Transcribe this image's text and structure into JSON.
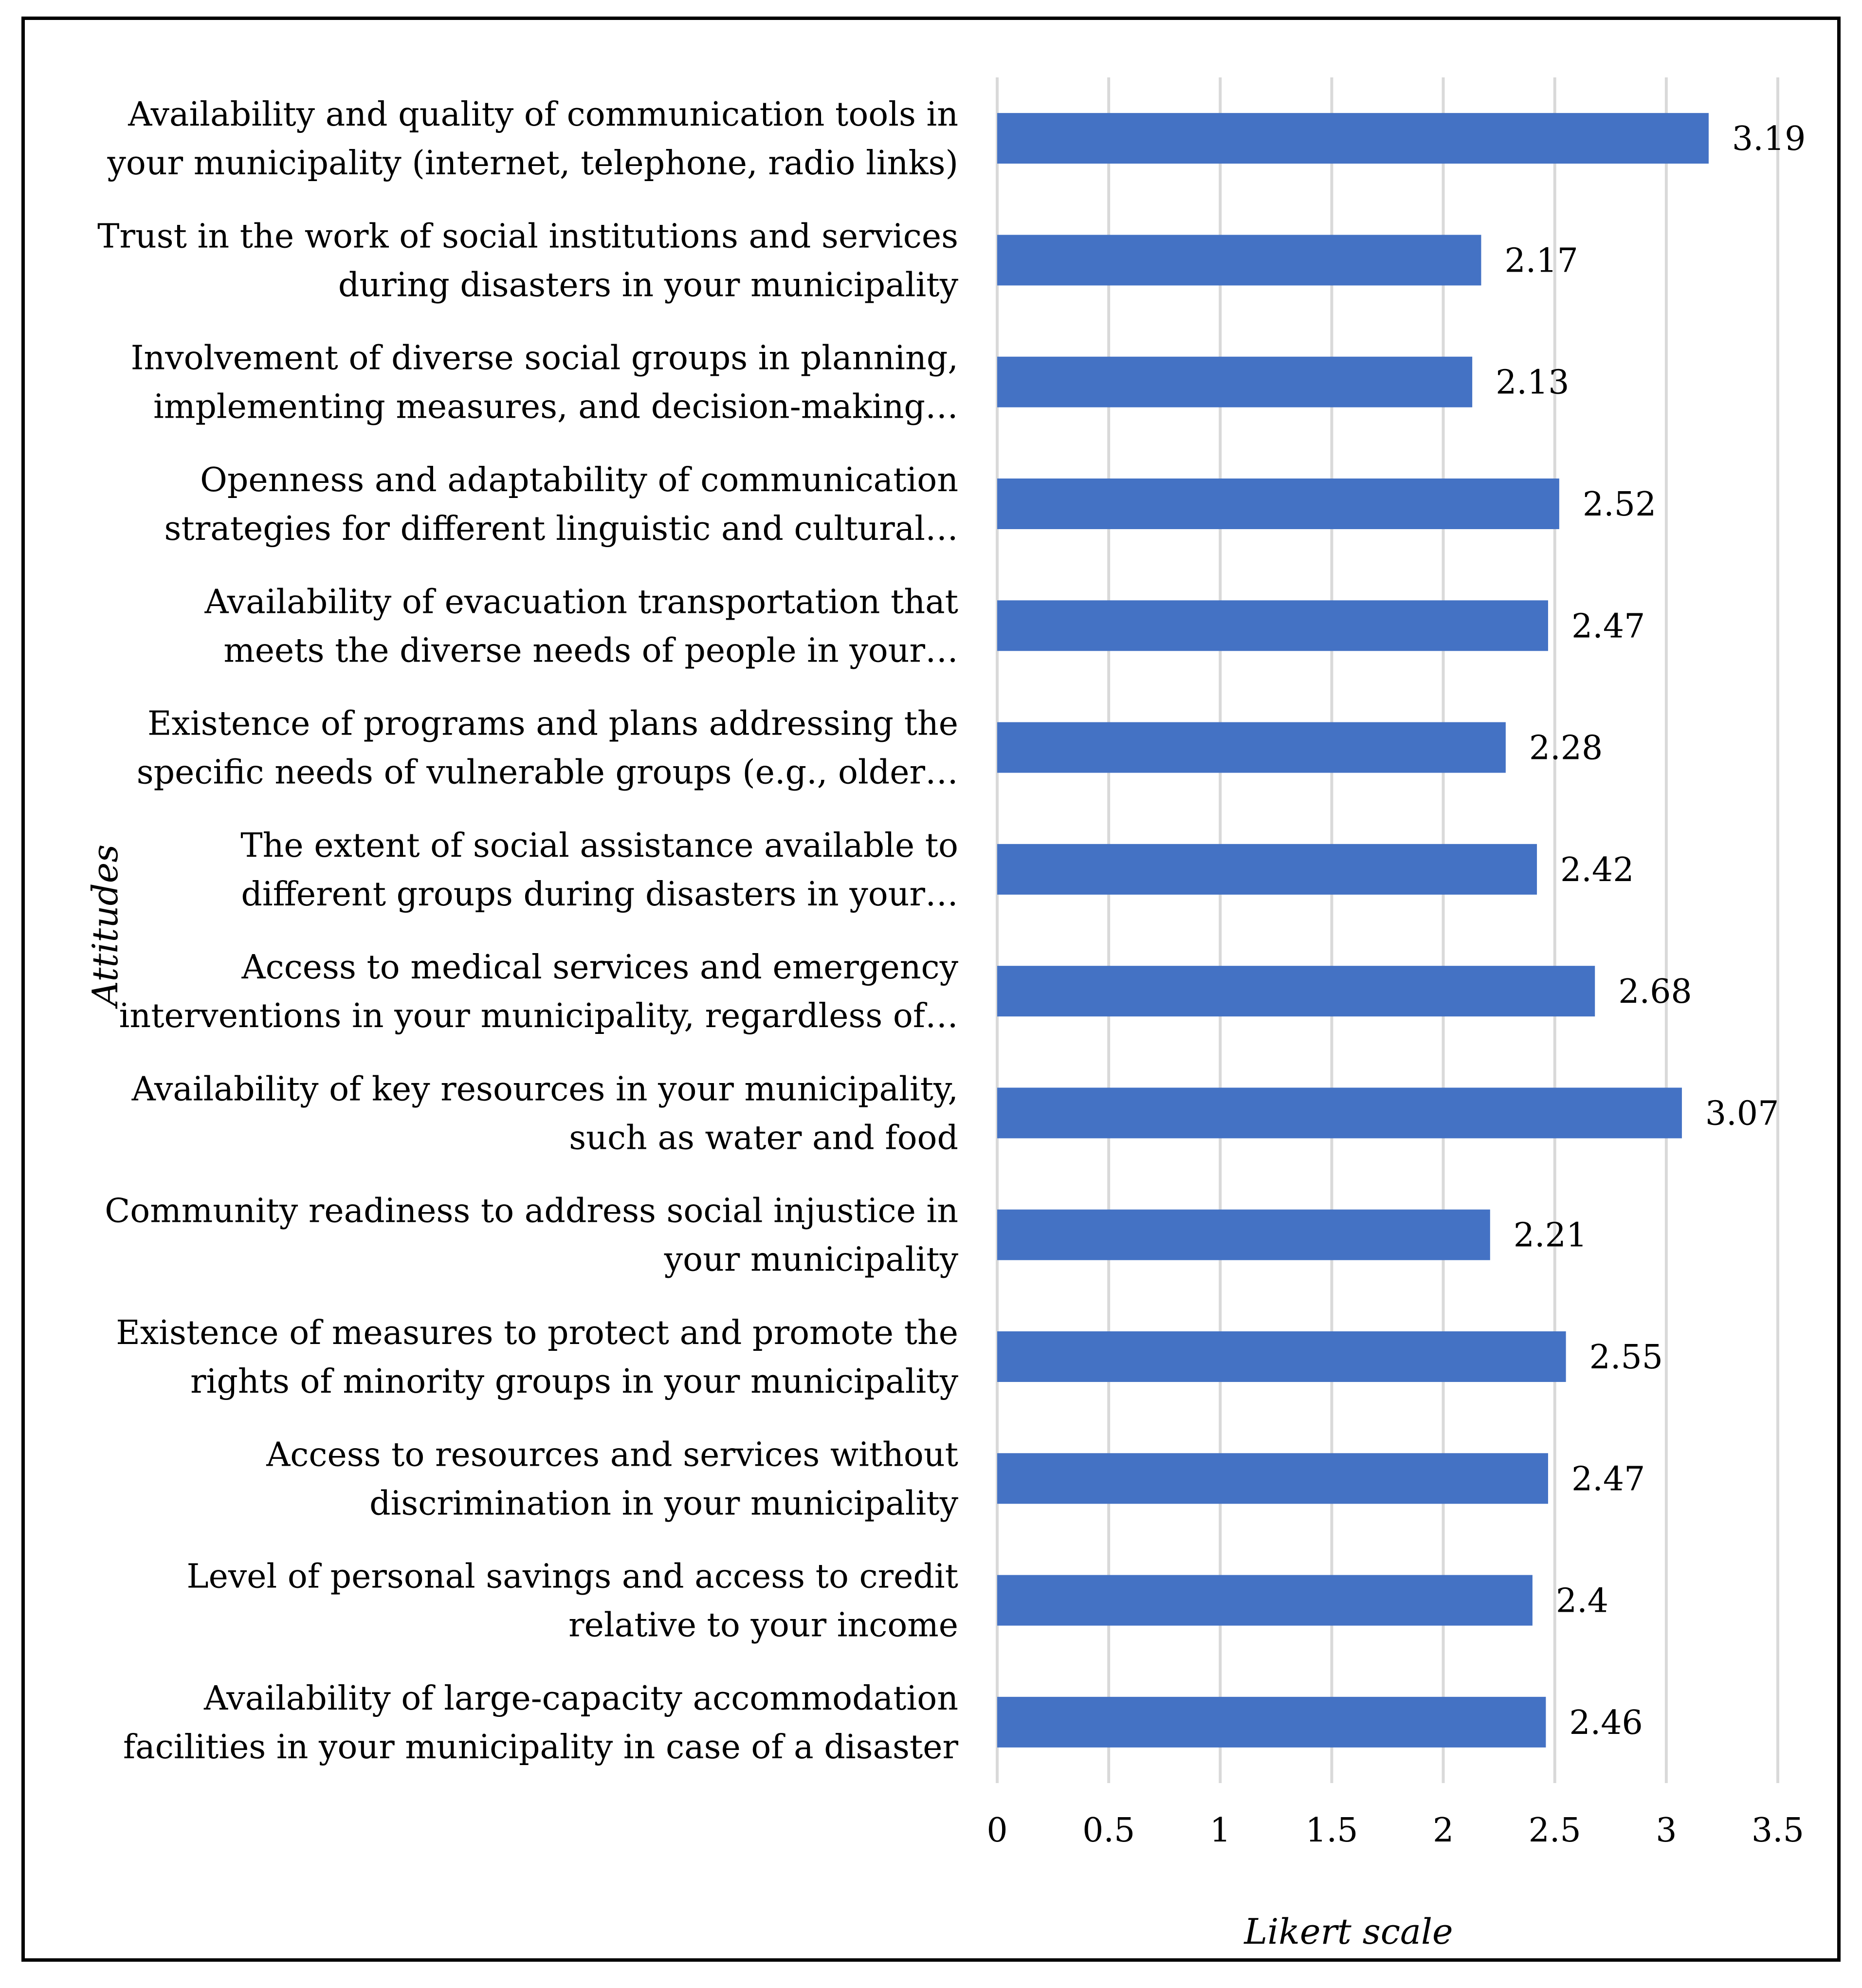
{
  "chart_data": {
    "type": "bar",
    "orientation": "horizontal",
    "categories": [
      [
        "Availability and quality of communication tools in",
        "your municipality (internet, telephone, radio links)"
      ],
      [
        "Trust in the work of social institutions and services",
        "during disasters in your municipality"
      ],
      [
        "Involvement of diverse social groups in planning,",
        "implementing measures, and decision-making…"
      ],
      [
        "Openness and adaptability of communication",
        "strategies for different linguistic and cultural…"
      ],
      [
        "Availability of evacuation transportation that",
        "meets the diverse needs of people in your…"
      ],
      [
        "Existence of programs and plans addressing the",
        "specific needs of vulnerable groups (e.g., older…"
      ],
      [
        "The extent of social assistance available to",
        "different groups during disasters in your…"
      ],
      [
        "Access to medical services and emergency",
        "interventions in your municipality, regardless of…"
      ],
      [
        "Availability of key resources in your municipality,",
        "such as water and food"
      ],
      [
        "Community readiness to address social injustice in",
        "your municipality"
      ],
      [
        "Existence of measures to protect and promote the",
        "rights of minority groups in your municipality"
      ],
      [
        "Access to resources and services without",
        "discrimination in your municipality"
      ],
      [
        "Level of personal savings and access to credit",
        "relative to your income"
      ],
      [
        "Availability of large-capacity accommodation",
        "facilities in your municipality in case of a disaster"
      ]
    ],
    "values": [
      3.19,
      2.17,
      2.13,
      2.52,
      2.47,
      2.28,
      2.42,
      2.68,
      3.07,
      2.21,
      2.55,
      2.47,
      2.4,
      2.46
    ],
    "value_labels": [
      "3.19",
      "2.17",
      "2.13",
      "2.52",
      "2.47",
      "2.28",
      "2.42",
      "2.68",
      "3.07",
      "2.21",
      "2.55",
      "2.47",
      "2.4",
      "2.46"
    ],
    "xticks": [
      "0",
      "0.5",
      "1",
      "1.5",
      "2",
      "2.5",
      "3",
      "3.5"
    ],
    "xlim": [
      0,
      3.5
    ],
    "xlabel": "Likert scale",
    "ylabel": "Attitudes",
    "grid": "vertical",
    "bar_color": "#4472c4"
  }
}
